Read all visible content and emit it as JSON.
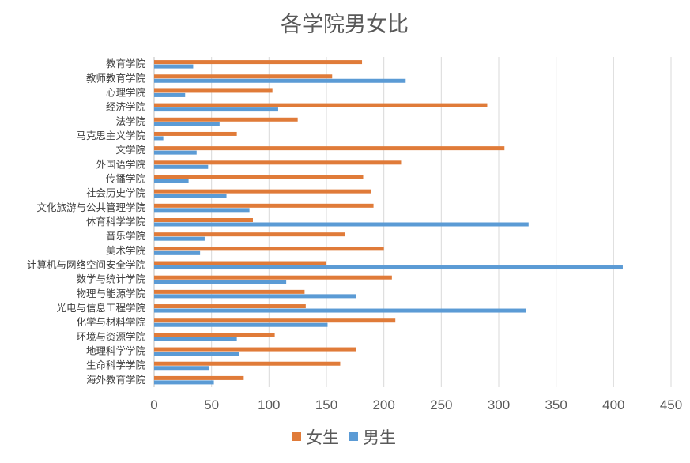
{
  "chart_data": {
    "type": "bar",
    "orientation": "horizontal",
    "title": "各学院男女比",
    "categories": [
      "教育学院",
      "教师教育学院",
      "心理学院",
      "经济学院",
      "法学院",
      "马克思主义学院",
      "文学院",
      "外国语学院",
      "传播学院",
      "社会历史学院",
      "文化旅游与公共管理学院",
      "体育科学学院",
      "音乐学院",
      "美术学院",
      "计算机与网络空间安全学院",
      "数学与统计学院",
      "物理与能源学院",
      "光电与信息工程学院",
      "化学与材料学院",
      "环境与资源学院",
      "地理科学学院",
      "生命科学学院",
      "海外教育学院"
    ],
    "series": [
      {
        "name": "女生",
        "color": "#E07B39",
        "values": [
          181,
          155,
          103,
          290,
          125,
          72,
          305,
          215,
          182,
          189,
          191,
          86,
          166,
          200,
          150,
          207,
          131,
          132,
          210,
          105,
          176,
          162,
          78
        ]
      },
      {
        "name": "男生",
        "color": "#5B9BD5",
        "values": [
          34,
          219,
          27,
          108,
          57,
          8,
          37,
          47,
          30,
          63,
          83,
          326,
          44,
          40,
          408,
          115,
          176,
          324,
          151,
          72,
          74,
          48,
          52
        ]
      }
    ],
    "xlim": [
      0,
      450
    ],
    "xticks": [
      "0",
      "50",
      "100",
      "150",
      "200",
      "250",
      "300",
      "350",
      "400",
      "450"
    ],
    "grid": true,
    "legend": "bottom"
  }
}
